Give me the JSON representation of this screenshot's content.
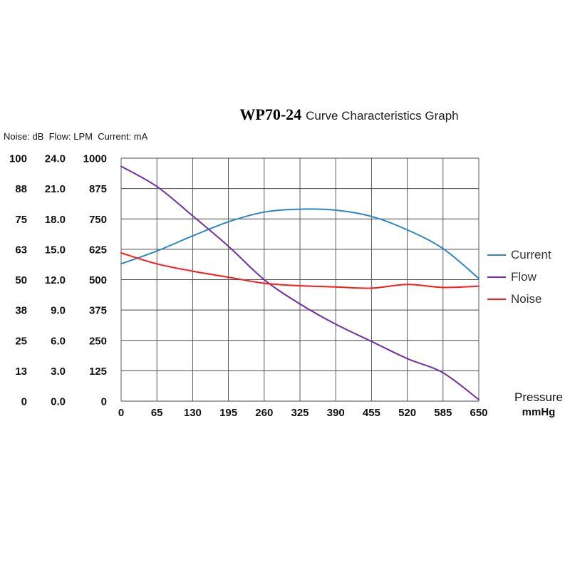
{
  "title": {
    "model": "WP70-24",
    "rest": "Curve Characteristics Graph"
  },
  "units_label": "Noise: dB  Flow: LPM  Current: mA",
  "x_axis": {
    "label": "Pressure",
    "unit": "mmHg",
    "ticks": [
      "0",
      "65",
      "130",
      "195",
      "260",
      "325",
      "390",
      "455",
      "520",
      "585",
      "650"
    ]
  },
  "y_axes": [
    {
      "name": "noise",
      "unit": "dB",
      "ticks_top_to_bottom": [
        "100",
        "88",
        "75",
        "63",
        "50",
        "38",
        "25",
        "13",
        "0"
      ]
    },
    {
      "name": "flow",
      "unit": "LPM",
      "ticks_top_to_bottom": [
        "24.0",
        "21.0",
        "18.0",
        "15.0",
        "12.0",
        "9.0",
        "6.0",
        "3.0",
        "0.0"
      ]
    },
    {
      "name": "current",
      "unit": "mA",
      "ticks_top_to_bottom": [
        "1000",
        "875",
        "750",
        "625",
        "500",
        "375",
        "250",
        "125",
        "0"
      ]
    }
  ],
  "legend": [
    {
      "label": "Current",
      "color": "#2e86c1"
    },
    {
      "label": "Flow",
      "color": "#7030a0"
    },
    {
      "label": "Noise",
      "color": "#ff1a1a"
    }
  ],
  "chart_data": {
    "type": "line",
    "title": "WP70-24 Curve Characteristics Graph",
    "xlabel": "Pressure (mmHg)",
    "x": [
      0,
      65,
      130,
      195,
      260,
      325,
      390,
      455,
      520,
      585,
      650
    ],
    "grid": true,
    "legend_position": "right",
    "series": [
      {
        "name": "Current",
        "unit": "mA",
        "axis_range": [
          0,
          1000
        ],
        "color": "#2e86c1",
        "values": [
          565,
          618,
          680,
          738,
          778,
          790,
          786,
          760,
          705,
          628,
          505
        ]
      },
      {
        "name": "Flow",
        "unit": "LPM",
        "axis_range": [
          0,
          24
        ],
        "color": "#7030a0",
        "values": [
          23.2,
          21.2,
          18.3,
          15.3,
          12.0,
          9.6,
          7.6,
          5.9,
          4.2,
          2.8,
          0.15
        ]
      },
      {
        "name": "Noise",
        "unit": "dB",
        "axis_range": [
          0,
          100
        ],
        "color": "#ff1a1a",
        "values": [
          61,
          56.5,
          53.5,
          51,
          48.5,
          47.5,
          47,
          46.5,
          48,
          46.8,
          47.3
        ]
      }
    ]
  }
}
